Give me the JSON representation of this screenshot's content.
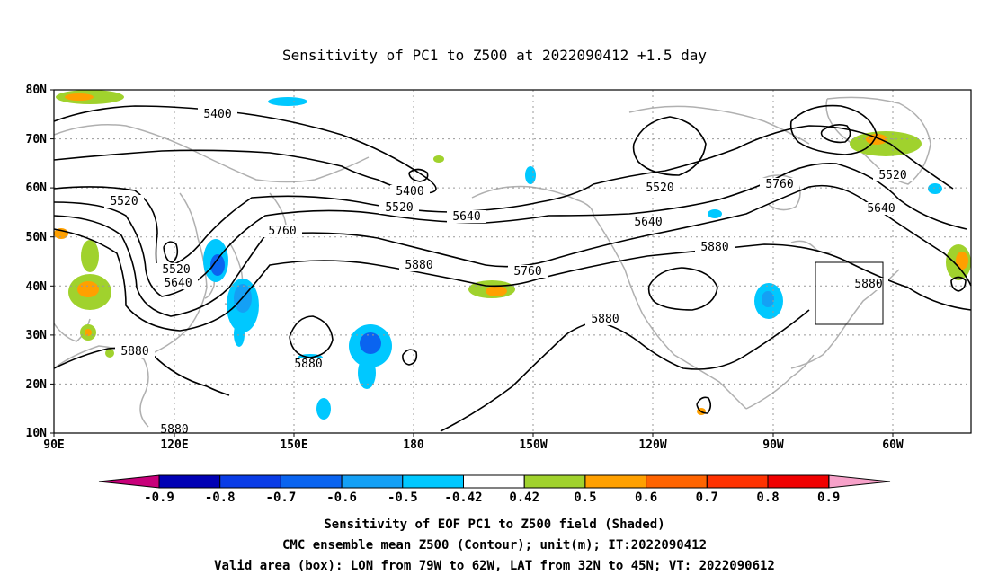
{
  "title": "Sensitivity of PC1 to Z500 at 2022090412 +1.5 day",
  "axes": {
    "lat_ticks": [
      "80N",
      "70N",
      "60N",
      "50N",
      "40N",
      "30N",
      "20N",
      "10N"
    ],
    "lon_ticks": [
      "90E",
      "120E",
      "150E",
      "180",
      "150W",
      "120W",
      "90W",
      "60W"
    ]
  },
  "contour_labels": [
    "5400",
    "5400",
    "5520",
    "5520",
    "5520",
    "5520",
    "5520",
    "5640",
    "5640",
    "5640",
    "5640",
    "5760",
    "5760",
    "5760",
    "5880",
    "5880",
    "5880",
    "5880",
    "5880",
    "5880",
    "5880"
  ],
  "colorbar": {
    "labels": [
      "-0.9",
      "-0.8",
      "-0.7",
      "-0.6",
      "-0.5",
      "-0.42",
      "0.42",
      "0.5",
      "0.6",
      "0.7",
      "0.8",
      "0.9"
    ],
    "colors": [
      "#0000b4",
      "#0a3ce6",
      "#0a64f0",
      "#14a0f5",
      "#00c8ff",
      "#ffffff",
      "#a0d22d",
      "#ffa000",
      "#ff6400",
      "#ff3200",
      "#f00000"
    ],
    "low_end_color": "#c8007a",
    "high_end_color": "#f7a1c9"
  },
  "valid_area": {
    "lon_range": [
      "79W",
      "62W"
    ],
    "lat_range": [
      "32N",
      "45N"
    ]
  },
  "captions": {
    "line1": "Sensitivity of EOF PC1 to Z500 field (Shaded)",
    "line2": "CMC ensemble mean Z500 (Contour); unit(m); IT:2022090412",
    "line3": "Valid area (box): LON from 79W to 62W, LAT from 32N to 45N; VT: 2022090612"
  }
}
